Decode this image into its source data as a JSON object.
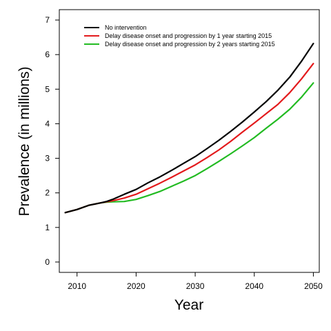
{
  "chart_data": {
    "type": "line",
    "title": "",
    "xlabel": "Year",
    "ylabel": "Prevalence (in millions)",
    "xlim": [
      2007,
      2051
    ],
    "ylim": [
      -0.3,
      7.3
    ],
    "x_ticks": [
      2010,
      2020,
      2030,
      2040,
      2050
    ],
    "y_ticks": [
      0,
      1,
      2,
      3,
      4,
      5,
      6,
      7
    ],
    "grid": false,
    "legend_position": "top-left",
    "x": [
      2008,
      2010,
      2012,
      2014,
      2015,
      2016,
      2018,
      2020,
      2022,
      2024,
      2026,
      2028,
      2030,
      2032,
      2034,
      2036,
      2038,
      2040,
      2042,
      2044,
      2046,
      2048,
      2050
    ],
    "series": [
      {
        "name": "No intervention",
        "color": "#000000",
        "values": [
          1.43,
          1.52,
          1.64,
          1.71,
          1.75,
          1.81,
          1.96,
          2.1,
          2.29,
          2.46,
          2.65,
          2.85,
          3.05,
          3.28,
          3.52,
          3.78,
          4.05,
          4.34,
          4.64,
          4.97,
          5.35,
          5.81,
          6.32
        ]
      },
      {
        "name": "Delay disease onset and progression by 1 year starting 2015",
        "color": "#e31a1c",
        "values": [
          1.43,
          1.52,
          1.64,
          1.71,
          1.74,
          1.77,
          1.85,
          1.96,
          2.12,
          2.28,
          2.45,
          2.63,
          2.81,
          3.02,
          3.24,
          3.49,
          3.76,
          4.02,
          4.29,
          4.56,
          4.9,
          5.3,
          5.74
        ]
      },
      {
        "name": "Delay disease onset and progression by 2 years starting 2015",
        "color": "#22bb22",
        "values": [
          1.43,
          1.52,
          1.64,
          1.71,
          1.73,
          1.74,
          1.75,
          1.81,
          1.92,
          2.04,
          2.19,
          2.34,
          2.5,
          2.7,
          2.91,
          3.13,
          3.36,
          3.6,
          3.87,
          4.13,
          4.42,
          4.77,
          5.18
        ]
      }
    ]
  }
}
